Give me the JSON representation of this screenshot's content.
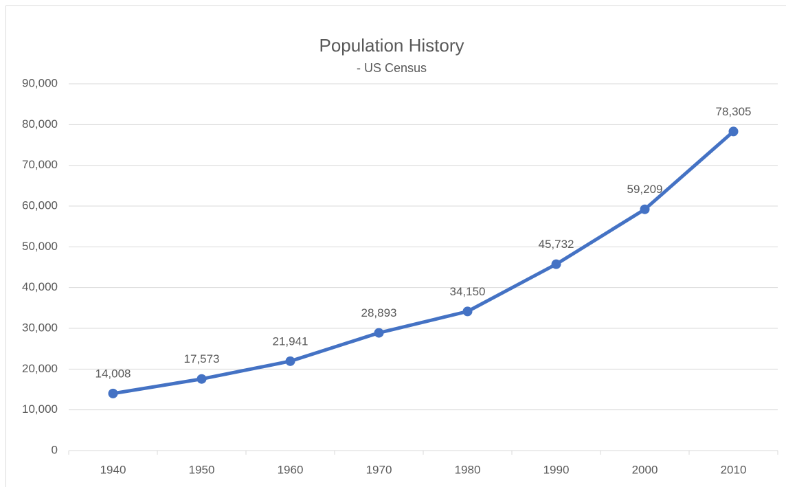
{
  "chart_data": {
    "type": "line",
    "title": "Population History",
    "subtitle": "- US Census",
    "categories": [
      "1940",
      "1950",
      "1960",
      "1970",
      "1980",
      "1990",
      "2000",
      "2010"
    ],
    "values": [
      14008,
      17573,
      21941,
      28893,
      34150,
      45732,
      59209,
      78305
    ],
    "value_labels": [
      "14,008",
      "17,573",
      "21,941",
      "28,893",
      "34,150",
      "45,732",
      "59,209",
      "78,305"
    ],
    "color": "#4472c4",
    "ylim": [
      0,
      90000
    ],
    "yticks": [
      0,
      {
        "value": 10000,
        "label": "10,000"
      },
      {
        "value": 20000,
        "label": "20,000"
      },
      {
        "value": 30000,
        "label": "30,000"
      },
      {
        "value": 40000,
        "label": "40,000"
      },
      {
        "value": 50000,
        "label": "50,000"
      },
      {
        "value": 60000,
        "label": "60,000"
      },
      {
        "value": 70000,
        "label": "70,000"
      },
      {
        "value": 80000,
        "label": "80,000"
      },
      {
        "value": 90000,
        "label": "90,000"
      }
    ],
    "grid": true
  }
}
